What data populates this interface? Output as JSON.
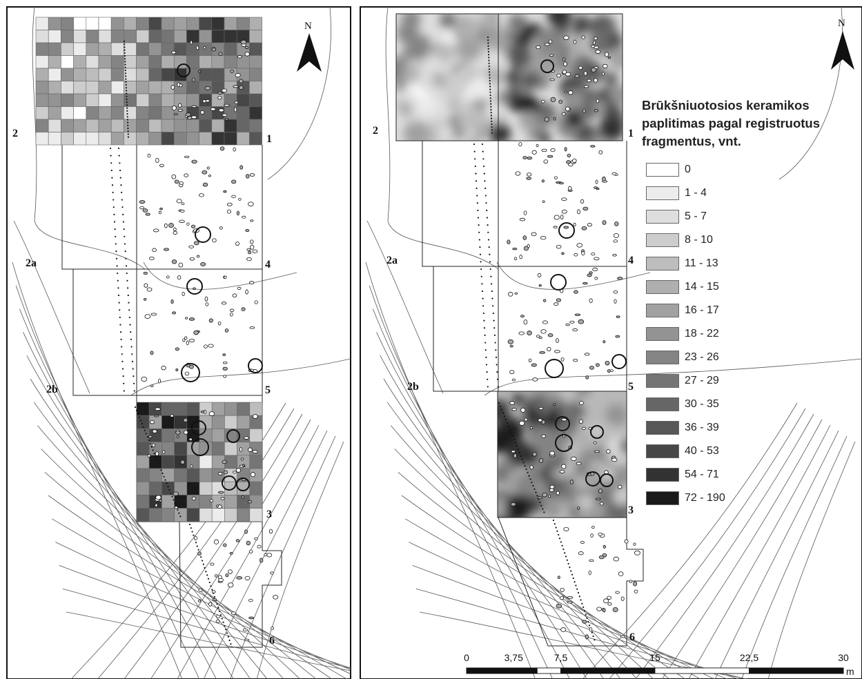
{
  "left_panel": {
    "area_labels": {
      "a1": "1",
      "a2": "2",
      "a2a": "2a",
      "a2b": "2b",
      "a3": "3",
      "a4": "4",
      "a5": "5",
      "a6": "6"
    },
    "north_label": "N"
  },
  "right_panel": {
    "area_labels": {
      "a1": "1",
      "a2": "2",
      "a2a": "2a",
      "a2b": "2b",
      "a3": "3",
      "a4": "4",
      "a5": "5",
      "a6": "6"
    },
    "north_label": "N"
  },
  "legend": {
    "title_lines": [
      "Brūkšniuotosios keramikos",
      "paplitimas pagal registruotus",
      "fragmentus, vnt."
    ],
    "classes": [
      {
        "label": "0",
        "color": "#ffffff"
      },
      {
        "label": "1 - 4",
        "color": "#ececec"
      },
      {
        "label": "5 - 7",
        "color": "#dedede"
      },
      {
        "label": "8 - 10",
        "color": "#cdcdcd"
      },
      {
        "label": "11 - 13",
        "color": "#bdbdbd"
      },
      {
        "label": "14 - 15",
        "color": "#afafaf"
      },
      {
        "label": "16 - 17",
        "color": "#a1a1a1"
      },
      {
        "label": "18 - 22",
        "color": "#939393"
      },
      {
        "label": "23 - 26",
        "color": "#848484"
      },
      {
        "label": "27 - 29",
        "color": "#757575"
      },
      {
        "label": "30 - 35",
        "color": "#666666"
      },
      {
        "label": "36 - 39",
        "color": "#575757"
      },
      {
        "label": "40 - 53",
        "color": "#474747"
      },
      {
        "label": "54 - 71",
        "color": "#333333"
      },
      {
        "label": "72 - 190",
        "color": "#1a1a1a"
      }
    ]
  },
  "scale_bar": {
    "ticks": [
      "0",
      "3,75",
      "7,5",
      "15",
      "22,5",
      "30"
    ],
    "tick_values": [
      0,
      3.75,
      7.5,
      15,
      22.5,
      30
    ],
    "unit": "m"
  }
}
